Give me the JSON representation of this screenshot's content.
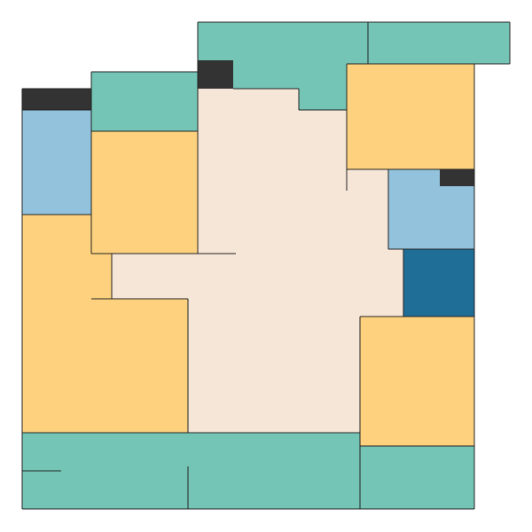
{
  "palette": {
    "background": "#ffffff",
    "circulation": "#f5e6d7",
    "bedroom": "#fdd17e",
    "bathroom": "#74c5b6",
    "kitchen": "#93c2dc",
    "balcony": "#1f6e97",
    "storage": "#333333",
    "wall": "#222222"
  },
  "rooms": [
    {
      "name": "circulation-area",
      "category": "circulation"
    },
    {
      "name": "top-bathroom-left",
      "category": "bathroom"
    },
    {
      "name": "top-bathroom-right",
      "category": "bathroom"
    },
    {
      "name": "upper-left-bathroom",
      "category": "bathroom"
    },
    {
      "name": "bottom-left-bathroom",
      "category": "bathroom"
    },
    {
      "name": "bottom-center-bathroom",
      "category": "bathroom"
    },
    {
      "name": "bottom-right-bathroom",
      "category": "bathroom"
    },
    {
      "name": "upper-right-bedroom",
      "category": "bedroom"
    },
    {
      "name": "upper-left-bedroom",
      "category": "bedroom"
    },
    {
      "name": "lower-left-bedroom",
      "category": "bedroom"
    },
    {
      "name": "lower-right-bedroom",
      "category": "bedroom"
    },
    {
      "name": "left-kitchen",
      "category": "kitchen"
    },
    {
      "name": "right-kitchen",
      "category": "kitchen"
    },
    {
      "name": "right-balcony",
      "category": "balcony"
    },
    {
      "name": "left-storage",
      "category": "storage"
    },
    {
      "name": "center-storage",
      "category": "storage"
    },
    {
      "name": "right-storage",
      "category": "storage"
    }
  ]
}
